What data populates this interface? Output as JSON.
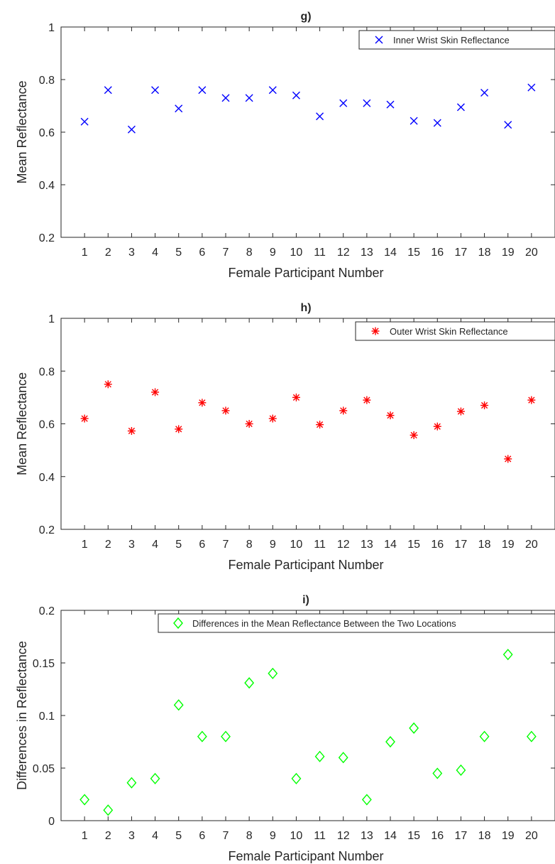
{
  "chart_data": [
    {
      "type": "scatter",
      "title": "g)",
      "xlabel": "Female Participant Number",
      "ylabel": "Mean Reflectance",
      "xlim": [
        0,
        21
      ],
      "ylim": [
        0.2,
        1
      ],
      "x_ticks": [
        "1",
        "2",
        "3",
        "4",
        "5",
        "6",
        "7",
        "8",
        "9",
        "10",
        "11",
        "12",
        "13",
        "14",
        "15",
        "16",
        "17",
        "18",
        "19",
        "20"
      ],
      "y_ticks": [
        "0.2",
        "0.4",
        "0.6",
        "0.8",
        "1"
      ],
      "y_tick_values": [
        0.2,
        0.4,
        0.6,
        0.8,
        1.0
      ],
      "legend_position": "top-right",
      "grid": false,
      "series": [
        {
          "name": "Inner Wrist Skin Reflectance",
          "marker": "x",
          "color": "#0000ff",
          "x": [
            1,
            2,
            3,
            4,
            5,
            6,
            7,
            8,
            9,
            10,
            11,
            12,
            13,
            14,
            15,
            16,
            17,
            18,
            19,
            20
          ],
          "values": [
            0.64,
            0.76,
            0.61,
            0.76,
            0.69,
            0.76,
            0.73,
            0.73,
            0.76,
            0.74,
            0.66,
            0.71,
            0.71,
            0.705,
            0.643,
            0.635,
            0.695,
            0.75,
            0.628,
            0.77
          ]
        }
      ]
    },
    {
      "type": "scatter",
      "title": "h)",
      "xlabel": "Female Participant Number",
      "ylabel": "Mean Reflectance",
      "xlim": [
        0,
        21
      ],
      "ylim": [
        0.2,
        1
      ],
      "x_ticks": [
        "1",
        "2",
        "3",
        "4",
        "5",
        "6",
        "7",
        "8",
        "9",
        "10",
        "11",
        "12",
        "13",
        "14",
        "15",
        "16",
        "17",
        "18",
        "19",
        "20"
      ],
      "y_ticks": [
        "0.2",
        "0.4",
        "0.6",
        "0.8",
        "1"
      ],
      "y_tick_values": [
        0.2,
        0.4,
        0.6,
        0.8,
        1.0
      ],
      "legend_position": "top-right",
      "grid": false,
      "series": [
        {
          "name": "Outer Wrist Skin Reflectance",
          "marker": "asterisk",
          "color": "#ff0000",
          "x": [
            1,
            2,
            3,
            4,
            5,
            6,
            7,
            8,
            9,
            10,
            11,
            12,
            13,
            14,
            15,
            16,
            17,
            18,
            19,
            20
          ],
          "values": [
            0.62,
            0.75,
            0.573,
            0.72,
            0.58,
            0.68,
            0.65,
            0.6,
            0.62,
            0.7,
            0.597,
            0.65,
            0.69,
            0.632,
            0.557,
            0.59,
            0.647,
            0.67,
            0.467,
            0.69
          ]
        }
      ]
    },
    {
      "type": "scatter",
      "title": "i)",
      "xlabel": "Female Participant Number",
      "ylabel": "Differences in Reflectance",
      "xlim": [
        0,
        21
      ],
      "ylim": [
        0,
        0.2
      ],
      "x_ticks": [
        "1",
        "2",
        "3",
        "4",
        "5",
        "6",
        "7",
        "8",
        "9",
        "10",
        "11",
        "12",
        "13",
        "14",
        "15",
        "16",
        "17",
        "18",
        "19",
        "20"
      ],
      "y_ticks": [
        "0",
        "0.05",
        "0.1",
        "0.15",
        "0.2"
      ],
      "y_tick_values": [
        0,
        0.05,
        0.1,
        0.15,
        0.2
      ],
      "legend_position": "top-right",
      "grid": false,
      "series": [
        {
          "name": "Differences in the Mean Reflectance Between the Two Locations",
          "marker": "diamond",
          "color": "#00ff00",
          "x": [
            1,
            2,
            3,
            4,
            5,
            6,
            7,
            8,
            9,
            10,
            11,
            12,
            13,
            14,
            15,
            16,
            17,
            18,
            19,
            20
          ],
          "values": [
            0.02,
            0.01,
            0.036,
            0.04,
            0.11,
            0.08,
            0.08,
            0.131,
            0.14,
            0.04,
            0.061,
            0.06,
            0.02,
            0.075,
            0.088,
            0.045,
            0.048,
            0.08,
            0.158,
            0.08
          ]
        }
      ]
    }
  ]
}
